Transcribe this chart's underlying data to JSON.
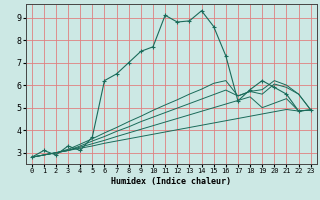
{
  "title": "",
  "xlabel": "Humidex (Indice chaleur)",
  "ylabel": "",
  "bg_color": "#cce8e4",
  "grid_color": "#e08080",
  "line_color": "#1a6b5a",
  "xlim": [
    -0.5,
    23.5
  ],
  "ylim": [
    2.5,
    9.6
  ],
  "xticks": [
    0,
    1,
    2,
    3,
    4,
    5,
    6,
    7,
    8,
    9,
    10,
    11,
    12,
    13,
    14,
    15,
    16,
    17,
    18,
    19,
    20,
    21,
    22,
    23
  ],
  "yticks": [
    3,
    4,
    5,
    6,
    7,
    8,
    9
  ],
  "lines": [
    {
      "x": [
        0,
        1,
        2,
        3,
        4,
        5,
        6,
        7,
        8,
        9,
        10,
        11,
        12,
        13,
        14,
        15,
        16,
        17,
        18,
        19,
        20,
        21,
        22,
        23
      ],
      "y": [
        2.8,
        3.1,
        2.9,
        3.3,
        3.1,
        3.7,
        6.2,
        6.5,
        7.0,
        7.5,
        7.7,
        9.1,
        8.8,
        8.85,
        9.3,
        8.6,
        7.3,
        5.3,
        5.8,
        6.2,
        5.9,
        5.6,
        4.85,
        4.9
      ],
      "marker": true
    },
    {
      "x": [
        0,
        2,
        3,
        4,
        5,
        6,
        7,
        8,
        9,
        10,
        11,
        12,
        13,
        14,
        15,
        16,
        17,
        18,
        19,
        20,
        21,
        22,
        23
      ],
      "y": [
        2.8,
        3.0,
        3.1,
        3.2,
        3.3,
        3.42,
        3.52,
        3.62,
        3.72,
        3.82,
        3.92,
        4.02,
        4.12,
        4.22,
        4.32,
        4.42,
        4.52,
        4.62,
        4.72,
        4.82,
        4.92,
        4.85,
        4.9
      ],
      "marker": false
    },
    {
      "x": [
        0,
        2,
        3,
        4,
        5,
        6,
        7,
        8,
        9,
        10,
        11,
        12,
        13,
        14,
        15,
        16,
        17,
        18,
        19,
        20,
        21,
        22,
        23
      ],
      "y": [
        2.8,
        3.0,
        3.1,
        3.25,
        3.4,
        3.55,
        3.72,
        3.88,
        4.04,
        4.2,
        4.36,
        4.52,
        4.68,
        4.84,
        5.0,
        5.16,
        5.32,
        5.48,
        5.0,
        5.2,
        5.4,
        4.85,
        4.9
      ],
      "marker": false
    },
    {
      "x": [
        0,
        2,
        3,
        4,
        5,
        6,
        7,
        8,
        9,
        10,
        11,
        12,
        13,
        14,
        15,
        16,
        17,
        18,
        19,
        20,
        21,
        22,
        23
      ],
      "y": [
        2.8,
        3.0,
        3.1,
        3.3,
        3.52,
        3.72,
        3.95,
        4.15,
        4.38,
        4.58,
        4.78,
        4.98,
        5.18,
        5.38,
        5.58,
        5.78,
        5.52,
        5.72,
        5.6,
        6.05,
        5.9,
        5.6,
        4.9
      ],
      "marker": false
    },
    {
      "x": [
        0,
        2,
        3,
        4,
        5,
        6,
        7,
        8,
        9,
        10,
        11,
        12,
        13,
        14,
        15,
        16,
        17,
        18,
        19,
        20,
        21,
        22,
        23
      ],
      "y": [
        2.8,
        3.0,
        3.15,
        3.38,
        3.62,
        3.88,
        4.12,
        4.38,
        4.62,
        4.88,
        5.12,
        5.35,
        5.6,
        5.82,
        6.08,
        6.2,
        5.52,
        5.72,
        5.8,
        6.2,
        6.0,
        5.6,
        4.9
      ],
      "marker": false
    }
  ]
}
